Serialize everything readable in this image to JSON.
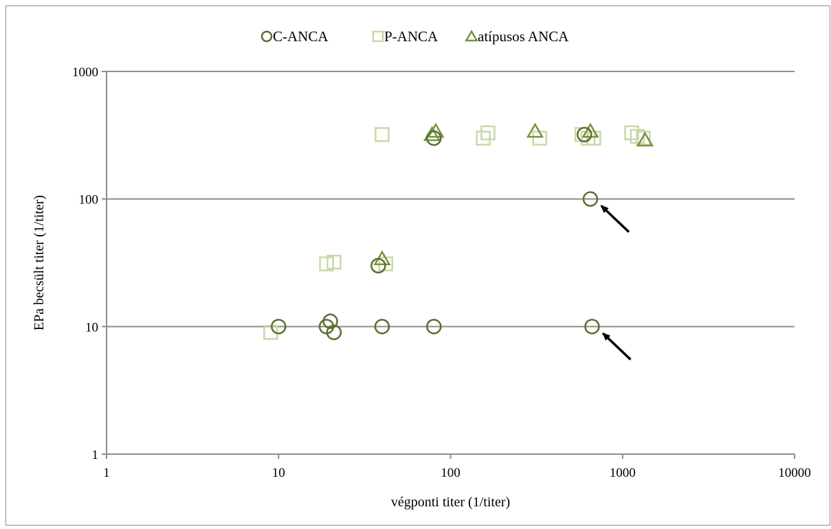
{
  "chart_data": {
    "type": "scatter",
    "title": "",
    "xlabel": "végponti titer (1/titer)",
    "ylabel": "EPa becsült titer (1/titer)",
    "x_scale": "log",
    "y_scale": "log",
    "xlim": [
      1,
      10000
    ],
    "ylim": [
      1,
      1000
    ],
    "x_ticks": [
      "1",
      "10",
      "100",
      "1000",
      "10000"
    ],
    "y_ticks": [
      "1",
      "10",
      "100",
      "1000"
    ],
    "grid": "horizontal major gridlines",
    "legend_position": "top-center",
    "series": [
      {
        "name": "C-ANCA",
        "marker": "circle",
        "color": "#5a6e2e",
        "points": [
          [
            10,
            10
          ],
          [
            19,
            10
          ],
          [
            20,
            11
          ],
          [
            21,
            9
          ],
          [
            38,
            30
          ],
          [
            40,
            10
          ],
          [
            80,
            10
          ],
          [
            80,
            300
          ],
          [
            600,
            320
          ],
          [
            650,
            100
          ],
          [
            665,
            10
          ]
        ]
      },
      {
        "name": "P-ANCA",
        "marker": "square",
        "color": "#c8d8a8",
        "points": [
          [
            9,
            9
          ],
          [
            19,
            31
          ],
          [
            21,
            32
          ],
          [
            40,
            320
          ],
          [
            42,
            31
          ],
          [
            155,
            300
          ],
          [
            165,
            330
          ],
          [
            330,
            300
          ],
          [
            580,
            320
          ],
          [
            630,
            300
          ],
          [
            680,
            300
          ],
          [
            1130,
            330
          ],
          [
            1220,
            310
          ],
          [
            1320,
            300
          ]
        ]
      },
      {
        "name": "atípusos ANCA",
        "marker": "triangle",
        "color": "#77933c",
        "points": [
          [
            40,
            34
          ],
          [
            78,
            320
          ],
          [
            82,
            340
          ],
          [
            310,
            340
          ],
          [
            650,
            340
          ],
          [
            1350,
            290
          ]
        ]
      }
    ],
    "annotations": [
      {
        "type": "arrow",
        "points_to": [
          650,
          100
        ],
        "color": "#000000"
      },
      {
        "type": "arrow",
        "points_to": [
          665,
          10
        ],
        "color": "#000000"
      }
    ]
  }
}
